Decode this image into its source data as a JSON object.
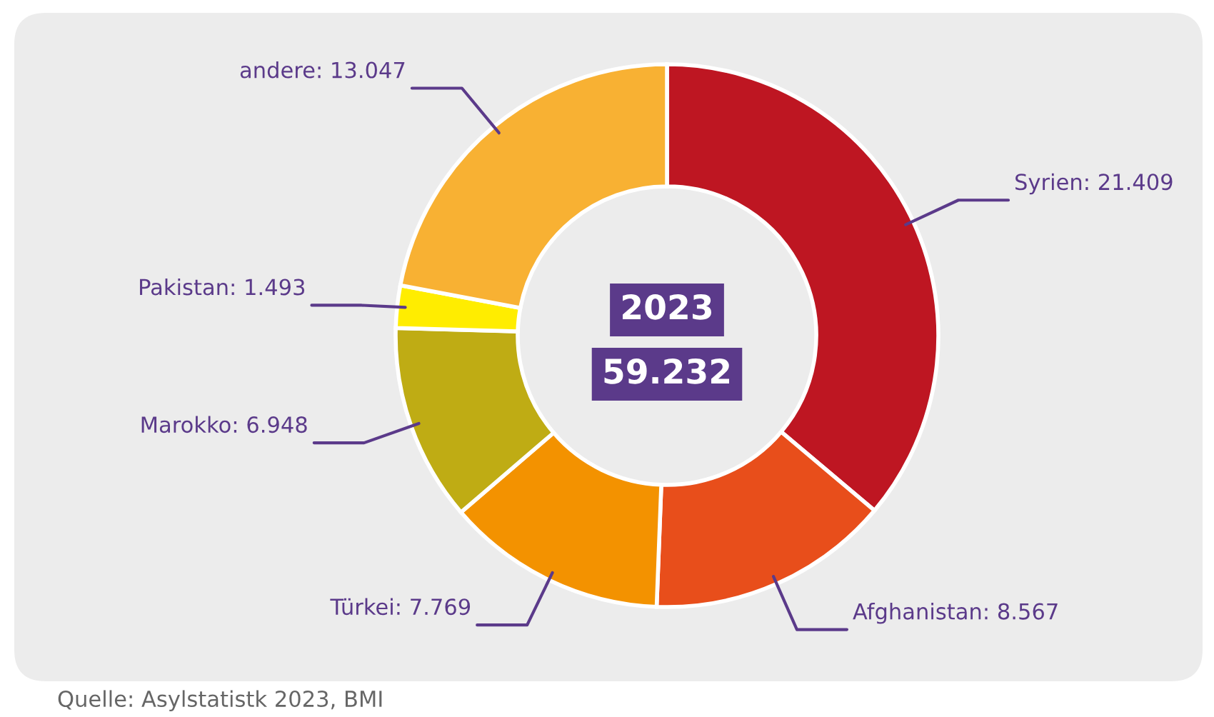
{
  "chart_data": {
    "type": "donut",
    "categories": [
      "Syrien",
      "Afghanistan",
      "Türkei",
      "Marokko",
      "Pakistan",
      "andere"
    ],
    "values": [
      21409,
      8567,
      7769,
      6948,
      1493,
      13047
    ],
    "value_labels": [
      "21.409",
      "8.567",
      "7.769",
      "6.948",
      "1.493",
      "13.047"
    ],
    "colors": [
      "#be1622",
      "#e84e1b",
      "#f39200",
      "#bfac14",
      "#ffed00",
      "#f8b133"
    ],
    "annotations": [
      "2023",
      "59.232",
      "Quelle: Asylstatistk 2023, BMI"
    ]
  }
}
